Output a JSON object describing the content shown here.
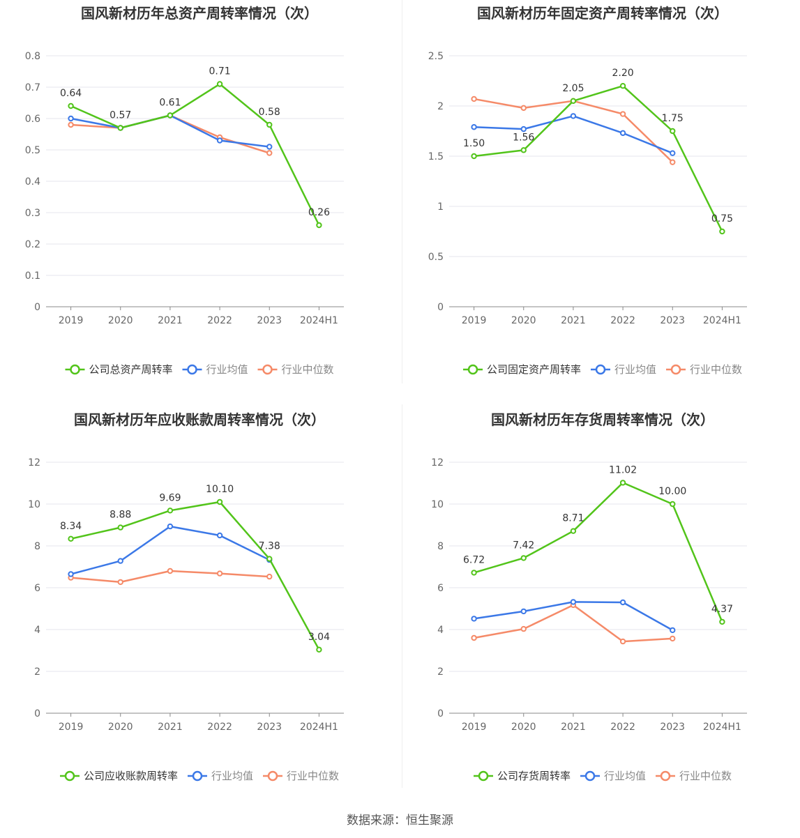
{
  "colors": {
    "company": "#52c41a",
    "avg": "#3b78e7",
    "median": "#f58a68",
    "grid": "#e6e6ee",
    "axis": "#888888"
  },
  "source": "数据来源：恒生聚源",
  "chart_data": [
    {
      "type": "line",
      "title": "国风新材历年总资产周转率情况（次）",
      "categories": [
        "2019",
        "2020",
        "2021",
        "2022",
        "2023",
        "2024H1"
      ],
      "yticks": [
        "0",
        "0.1",
        "0.2",
        "0.3",
        "0.4",
        "0.5",
        "0.6",
        "0.7",
        "0.8"
      ],
      "ylim": [
        0,
        0.8
      ],
      "series": [
        {
          "name": "公司总资产周转率",
          "values": [
            0.64,
            0.57,
            0.61,
            0.71,
            0.58,
            0.26
          ],
          "labels": [
            "0.64",
            "0.57",
            "0.61",
            "0.71",
            "0.58",
            "0.26"
          ]
        },
        {
          "name": "行业均值",
          "values": [
            0.6,
            0.57,
            0.61,
            0.53,
            0.51,
            null
          ]
        },
        {
          "name": "行业中位数",
          "values": [
            0.58,
            0.57,
            0.61,
            0.54,
            0.49,
            null
          ]
        }
      ]
    },
    {
      "type": "line",
      "title": "国风新材历年固定资产周转率情况（次）",
      "categories": [
        "2019",
        "2020",
        "2021",
        "2022",
        "2023",
        "2024H1"
      ],
      "yticks": [
        "0",
        "0.5",
        "1",
        "1.5",
        "2",
        "2.5"
      ],
      "ylim": [
        0,
        2.5
      ],
      "series": [
        {
          "name": "公司固定资产周转率",
          "values": [
            1.5,
            1.56,
            2.05,
            2.2,
            1.75,
            0.75
          ],
          "labels": [
            "1.50",
            "1.56",
            "2.05",
            "2.20",
            "1.75",
            "0.75"
          ]
        },
        {
          "name": "行业均值",
          "values": [
            1.79,
            1.77,
            1.9,
            1.73,
            1.53,
            null
          ]
        },
        {
          "name": "行业中位数",
          "values": [
            2.07,
            1.98,
            2.05,
            1.92,
            1.44,
            null
          ]
        }
      ]
    },
    {
      "type": "line",
      "title": "国风新材历年应收账款周转率情况（次）",
      "categories": [
        "2019",
        "2020",
        "2021",
        "2022",
        "2023",
        "2024H1"
      ],
      "yticks": [
        "0",
        "2",
        "4",
        "6",
        "8",
        "10",
        "12"
      ],
      "ylim": [
        0,
        12
      ],
      "series": [
        {
          "name": "公司应收账款周转率",
          "values": [
            8.34,
            8.88,
            9.69,
            10.1,
            7.38,
            3.04
          ],
          "labels": [
            "8.34",
            "8.88",
            "9.69",
            "10.10",
            "7.38",
            "3.04"
          ]
        },
        {
          "name": "行业均值",
          "values": [
            6.65,
            7.28,
            8.93,
            8.5,
            7.33,
            null
          ]
        },
        {
          "name": "行业中位数",
          "values": [
            6.48,
            6.27,
            6.8,
            6.68,
            6.53,
            null
          ]
        }
      ]
    },
    {
      "type": "line",
      "title": "国风新材历年存货周转率情况（次）",
      "categories": [
        "2019",
        "2020",
        "2021",
        "2022",
        "2023",
        "2024H1"
      ],
      "yticks": [
        "0",
        "2",
        "4",
        "6",
        "8",
        "10",
        "12"
      ],
      "ylim": [
        0,
        12
      ],
      "series": [
        {
          "name": "公司存货周转率",
          "values": [
            6.72,
            7.42,
            8.71,
            11.02,
            10.0,
            4.37
          ],
          "labels": [
            "6.72",
            "7.42",
            "8.71",
            "11.02",
            "10.00",
            "4.37"
          ]
        },
        {
          "name": "行业均值",
          "values": [
            4.52,
            4.87,
            5.32,
            5.3,
            3.97,
            null
          ]
        },
        {
          "name": "行业中位数",
          "values": [
            3.6,
            4.03,
            5.17,
            3.43,
            3.57,
            null
          ]
        }
      ]
    }
  ]
}
